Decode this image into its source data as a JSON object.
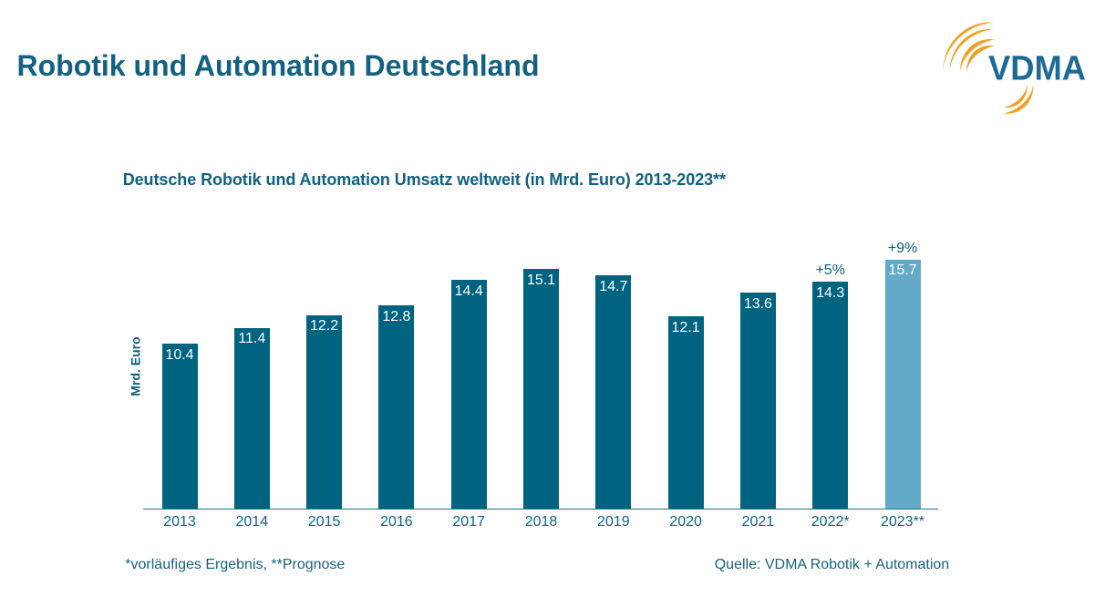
{
  "header": {
    "title": "Robotik und Automation Deutschland",
    "title_color": "#136181"
  },
  "logo": {
    "text": "VDMA",
    "text_color": "#1E6A96",
    "arc_color": "#F0A125"
  },
  "chart_data": {
    "type": "bar",
    "title": "Deutsche Robotik und Automation Umsatz weltweit (in Mrd. Euro) 2013-2023**",
    "ylabel": "Mrd. Euro",
    "categories": [
      "2013",
      "2014",
      "2015",
      "2016",
      "2017",
      "2018",
      "2019",
      "2020",
      "2021",
      "2022*",
      "2023**"
    ],
    "values": [
      10.4,
      11.4,
      12.2,
      12.8,
      14.4,
      15.1,
      14.7,
      12.1,
      13.6,
      14.3,
      15.7
    ],
    "value_labels": [
      "10.4",
      "11.4",
      "12.2",
      "12.8",
      "14.4",
      "15.1",
      "14.7",
      "12.1",
      "13.6",
      "14.3",
      "15.7"
    ],
    "annotations": [
      {
        "index": 9,
        "label": "+5%"
      },
      {
        "index": 10,
        "label": "+9%"
      }
    ],
    "bar_color": "#006380",
    "highlight_color": "#63AAC9",
    "highlight_index": 10,
    "text_color": "#116080",
    "value_label_color": "#FFFFFF",
    "axis_line_color": "#21708C",
    "grid": false,
    "ylim": [
      0,
      17.5
    ]
  },
  "footer": {
    "footnote": "*vorläufiges Ergebnis, **Prognose",
    "source": "Quelle: VDMA Robotik + Automation",
    "text_color": "#14637F"
  }
}
